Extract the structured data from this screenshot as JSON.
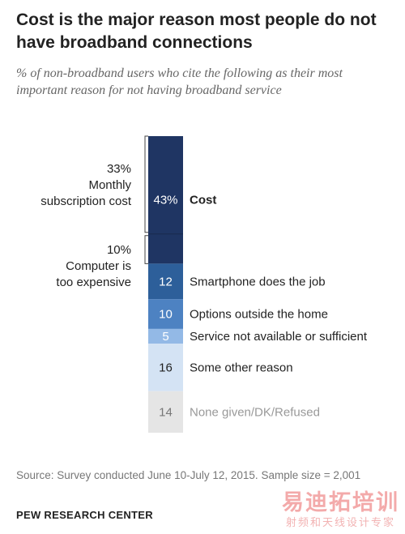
{
  "title": "Cost is the major reason most people do not have broadband connections",
  "subtitle": "% of non-broadband users who cite the following as their most important reason for not having broadband service",
  "side_notes": {
    "monthly_value": "33%",
    "monthly_label_1": "Monthly",
    "monthly_label_2": "subscription cost",
    "computer_value": "10%",
    "computer_label_1": "Computer is",
    "computer_label_2": "too expensive"
  },
  "source": "Source: Survey conducted June 10-July 12, 2015. Sample size = 2,001",
  "org": "PEW RESEARCH CENTER",
  "watermark": {
    "main": "易迪拓培训",
    "sub": "射频和天线设计专家"
  },
  "colors": {
    "cost": "#1f3563",
    "smartphone": "#2d5f9a",
    "options": "#4d82c2",
    "not_available": "#93b9e6",
    "other": "#d4e3f4",
    "none": "#e5e5e5"
  },
  "chart_data": {
    "type": "bar",
    "stacked": true,
    "orientation": "vertical",
    "categories": [
      "Cost",
      "Smartphone does the job",
      "Options outside the home",
      "Service not available or sufficient",
      "Some other reason",
      "None given/DK/Refused"
    ],
    "values": [
      43,
      12,
      10,
      5,
      16,
      14
    ],
    "value_labels": [
      "43%",
      "12",
      "10",
      "5",
      "16",
      "14"
    ],
    "cost_breakdown": [
      {
        "name": "Monthly subscription cost",
        "value": 33
      },
      {
        "name": "Computer is too expensive",
        "value": 10
      }
    ],
    "unit": "%"
  }
}
